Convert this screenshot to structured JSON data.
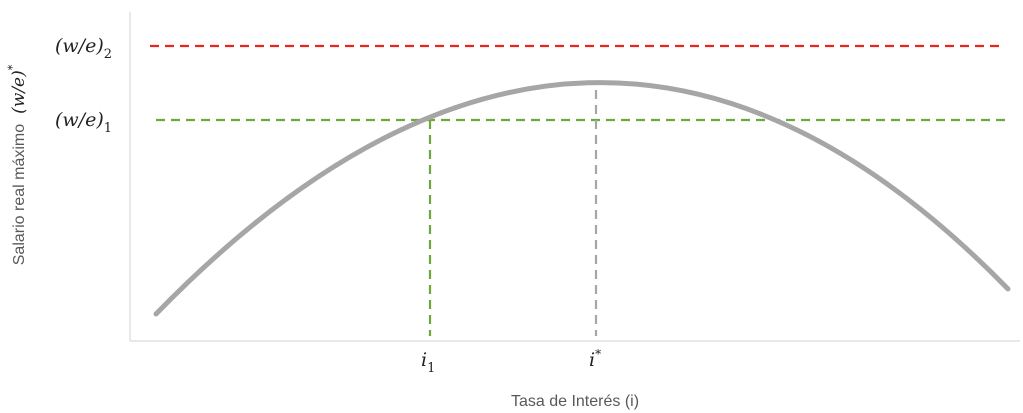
{
  "diagram": {
    "x_axis_label": "Tasa de Interés (i)",
    "y_axis_label_text": "Salario real máximo",
    "y_axis_label_math": "(w/e)",
    "y_axis_label_sup": "*",
    "levels": [
      {
        "id": "w2",
        "label_main": "(w/e)",
        "label_sub": "2",
        "color": "#e8251f"
      },
      {
        "id": "w1",
        "label_main": "(w/e)",
        "label_sub": "1",
        "color": "#6aaa3a"
      }
    ],
    "x_markers": [
      {
        "id": "i1",
        "label_main": "i",
        "label_sub": "1",
        "color": "#6aaa3a"
      },
      {
        "id": "istar",
        "label_main": "i",
        "label_sup": "*",
        "color": "#a6a6a6"
      }
    ],
    "curve": {
      "color": "#a6a6a6"
    }
  }
}
